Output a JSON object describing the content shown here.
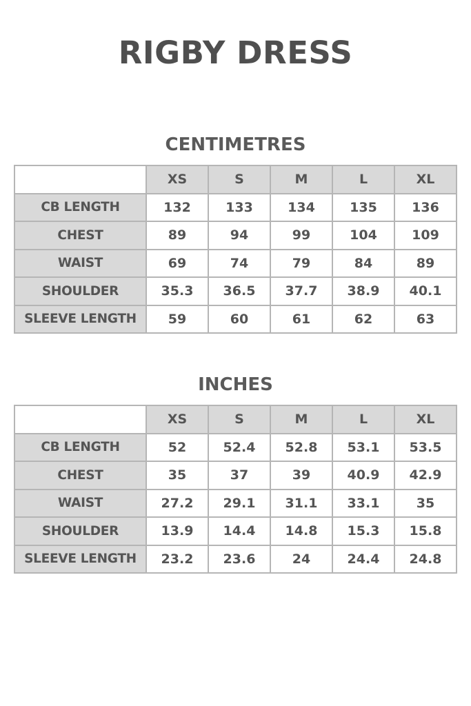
{
  "title": "RIGBY DRESS",
  "sizes": [
    "XS",
    "S",
    "M",
    "L",
    "XL"
  ],
  "tables": [
    {
      "heading": "CENTIMETRES",
      "rows": [
        {
          "label": "CB LENGTH",
          "values": [
            "132",
            "133",
            "134",
            "135",
            "136"
          ]
        },
        {
          "label": "CHEST",
          "values": [
            "89",
            "94",
            "99",
            "104",
            "109"
          ]
        },
        {
          "label": "WAIST",
          "values": [
            "69",
            "74",
            "79",
            "84",
            "89"
          ]
        },
        {
          "label": "SHOULDER",
          "values": [
            "35.3",
            "36.5",
            "37.7",
            "38.9",
            "40.1"
          ]
        },
        {
          "label": "SLEEVE LENGTH",
          "values": [
            "59",
            "60",
            "61",
            "62",
            "63"
          ]
        }
      ]
    },
    {
      "heading": "INCHES",
      "rows": [
        {
          "label": "CB LENGTH",
          "values": [
            "52",
            "52.4",
            "52.8",
            "53.1",
            "53.5"
          ]
        },
        {
          "label": "CHEST",
          "values": [
            "35",
            "37",
            "39",
            "40.9",
            "42.9"
          ]
        },
        {
          "label": "WAIST",
          "values": [
            "27.2",
            "29.1",
            "31.1",
            "33.1",
            "35"
          ]
        },
        {
          "label": "SHOULDER",
          "values": [
            "13.9",
            "14.4",
            "14.8",
            "15.3",
            "15.8"
          ]
        },
        {
          "label": "SLEEVE LENGTH",
          "values": [
            "23.2",
            "23.6",
            "24",
            "24.4",
            "24.8"
          ]
        }
      ]
    }
  ],
  "colors": {
    "header_fill": "#d9d9d9",
    "border": "#b5b5b5",
    "text": "#555555"
  }
}
